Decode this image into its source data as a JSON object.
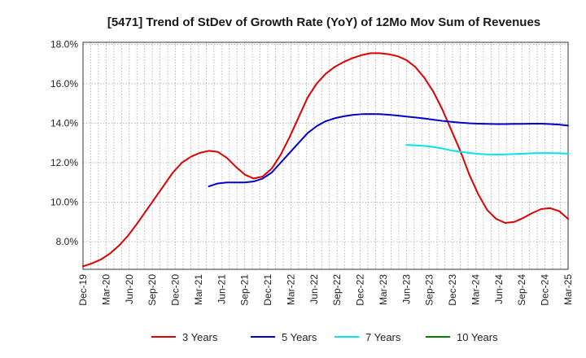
{
  "chart_data": {
    "type": "line",
    "title": "[5471]  Trend of StDev of Growth Rate (YoY) of 12Mo Mov Sum of Revenues",
    "xlabel": "",
    "ylabel": "",
    "x_ticks": [
      "Dec-19",
      "Mar-20",
      "Jun-20",
      "Sep-20",
      "Dec-20",
      "Mar-21",
      "Jun-21",
      "Sep-21",
      "Dec-21",
      "Mar-22",
      "Jun-22",
      "Sep-22",
      "Dec-22",
      "Mar-23",
      "Jun-23",
      "Sep-23",
      "Dec-23",
      "Mar-24",
      "Jun-24",
      "Sep-24",
      "Dec-24",
      "Mar-25"
    ],
    "y_ticks": [
      8.0,
      10.0,
      12.0,
      14.0,
      16.0,
      18.0
    ],
    "y_tick_labels": [
      "8.0%",
      "10.0%",
      "12.0%",
      "14.0%",
      "16.0%",
      "18.0%"
    ],
    "ylim": [
      6.6,
      18.1
    ],
    "grid": true,
    "legend_position": "bottom",
    "series": [
      {
        "name": "3 Years",
        "color": "#dd0000",
        "values": [
          6.75,
          6.9,
          7.1,
          7.4,
          7.8,
          8.3,
          8.9,
          9.55,
          10.2,
          10.85,
          11.5,
          12.0,
          12.3,
          12.5,
          12.6,
          12.55,
          12.25,
          11.8,
          11.4,
          11.2,
          11.3,
          11.7,
          12.4,
          13.3,
          14.3,
          15.3,
          16.0,
          16.5,
          16.85,
          17.1,
          17.3,
          17.45,
          17.55,
          17.55,
          17.5,
          17.4,
          17.2,
          16.85,
          16.3,
          15.6,
          14.7,
          13.65,
          12.6,
          11.4,
          10.4,
          9.6,
          9.15,
          8.95,
          9.0,
          9.2,
          9.45,
          9.65,
          9.7,
          9.55,
          9.15
        ]
      },
      {
        "name": "5 Years",
        "color": "#0000cc",
        "values": [
          null,
          null,
          null,
          null,
          null,
          null,
          null,
          null,
          null,
          null,
          null,
          null,
          null,
          null,
          10.8,
          10.95,
          11.0,
          11.0,
          11.0,
          11.05,
          11.2,
          11.5,
          12.0,
          12.5,
          13.0,
          13.5,
          13.85,
          14.1,
          14.25,
          14.35,
          14.42,
          14.46,
          14.47,
          14.46,
          14.43,
          14.39,
          14.34,
          14.29,
          14.24,
          14.18,
          14.12,
          14.07,
          14.03,
          14.0,
          13.98,
          13.97,
          13.96,
          13.96,
          13.97,
          13.97,
          13.98,
          13.98,
          13.96,
          13.93,
          13.88
        ]
      },
      {
        "name": "7 Years",
        "color": "#00e5ee",
        "values": [
          null,
          null,
          null,
          null,
          null,
          null,
          null,
          null,
          null,
          null,
          null,
          null,
          null,
          null,
          null,
          null,
          null,
          null,
          null,
          null,
          null,
          null,
          null,
          null,
          null,
          null,
          null,
          null,
          null,
          null,
          null,
          null,
          null,
          null,
          null,
          null,
          12.9,
          12.88,
          12.85,
          12.8,
          12.72,
          12.62,
          12.55,
          12.5,
          12.45,
          12.42,
          12.41,
          12.42,
          12.44,
          12.46,
          12.48,
          12.49,
          12.49,
          12.48,
          12.46
        ]
      },
      {
        "name": "10 Years",
        "color": "#008000",
        "values": []
      }
    ]
  }
}
